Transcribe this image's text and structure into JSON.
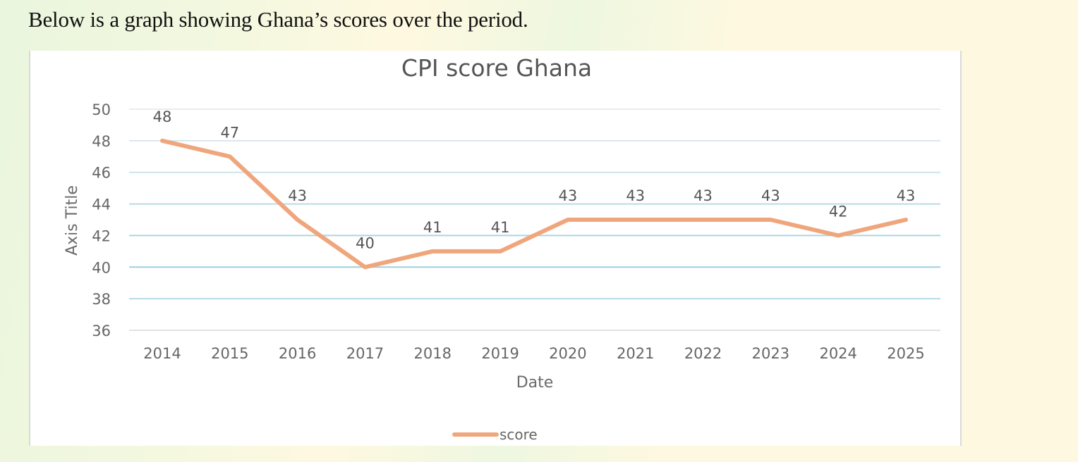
{
  "intro_text": "Below is a graph showing Ghana’s scores over the period.",
  "chart_data": {
    "type": "line",
    "title": "CPI score Ghana",
    "xlabel": "Date",
    "ylabel": "Axis Title",
    "categories": [
      "2014",
      "2015",
      "2016",
      "2017",
      "2018",
      "2019",
      "2020",
      "2021",
      "2022",
      "2023",
      "2024",
      "2025"
    ],
    "series": [
      {
        "name": "score",
        "color": "#f0a67c",
        "values": [
          48,
          47,
          43,
          40,
          41,
          41,
          43,
          43,
          43,
          43,
          42,
          43
        ]
      }
    ],
    "ylim": [
      36,
      50
    ],
    "yticks": [
      50,
      48,
      46,
      44,
      42,
      40,
      38,
      36
    ],
    "grid": true,
    "data_labels": true,
    "legend_position": "bottom"
  }
}
